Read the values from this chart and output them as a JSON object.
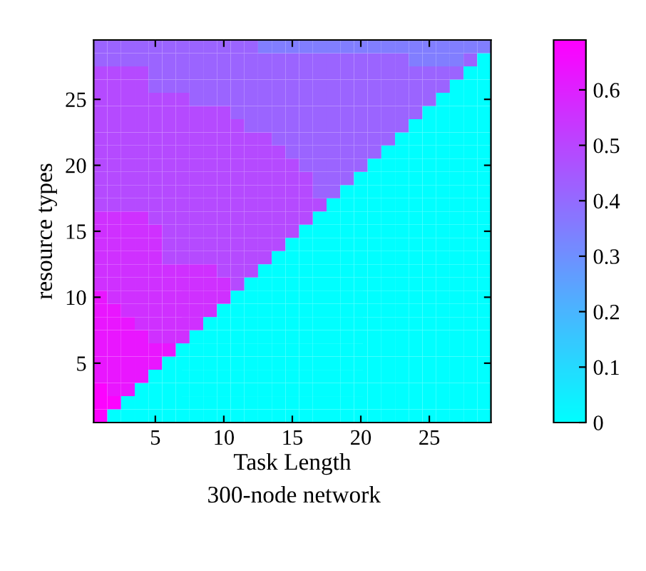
{
  "chart_data": {
    "type": "heatmap",
    "xlabel": "Task Length",
    "ylabel": "resource types",
    "annotations": [
      "300-node network"
    ],
    "categories": [
      null,
      null,
      null,
      null,
      "5",
      null,
      null,
      null,
      null,
      "10",
      null,
      null,
      null,
      null,
      "15",
      null,
      null,
      null,
      null,
      "20",
      null,
      null,
      null,
      null,
      "25",
      null,
      null,
      null,
      null
    ],
    "y_categories": [
      null,
      null,
      null,
      null,
      "25",
      null,
      null,
      null,
      null,
      "20",
      null,
      null,
      null,
      null,
      "15",
      null,
      null,
      null,
      null,
      "10",
      null,
      null,
      null,
      null,
      "5",
      null,
      null,
      null,
      null
    ],
    "clim": [
      0,
      0.69
    ],
    "cticks": [
      0,
      0.1,
      0.2,
      0.3,
      0.4,
      0.5,
      0.6
    ],
    "cells": [
      [
        0.42,
        0.42,
        0.42,
        0.42,
        0.42,
        0.42,
        0.42,
        0.42,
        0.42,
        0.42,
        0.42,
        0.42,
        0.35,
        0.35,
        0.35,
        0.35,
        0.35,
        0.35,
        0.35,
        0.35,
        0.35,
        0.35,
        0.35,
        0.35,
        0.35,
        0.35,
        0.35,
        0.35,
        0.35
      ],
      [
        0.42,
        0.42,
        0.42,
        0.42,
        0.42,
        0.42,
        0.42,
        0.42,
        0.42,
        0.42,
        0.42,
        0.42,
        0.42,
        0.42,
        0.42,
        0.42,
        0.42,
        0.42,
        0.42,
        0.42,
        0.42,
        0.42,
        0.42,
        0.35,
        0.35,
        0.35,
        0.35,
        0.42,
        0
      ],
      [
        0.49,
        0.49,
        0.49,
        0.49,
        0.42,
        0.42,
        0.42,
        0.42,
        0.42,
        0.42,
        0.42,
        0.42,
        0.42,
        0.42,
        0.42,
        0.42,
        0.42,
        0.42,
        0.42,
        0.42,
        0.42,
        0.42,
        0.42,
        0.42,
        0.42,
        0.42,
        0.42,
        0,
        0
      ],
      [
        0.49,
        0.49,
        0.49,
        0.49,
        0.42,
        0.42,
        0.42,
        0.42,
        0.42,
        0.42,
        0.42,
        0.42,
        0.42,
        0.42,
        0.42,
        0.42,
        0.42,
        0.42,
        0.42,
        0.42,
        0.42,
        0.42,
        0.42,
        0.42,
        0.42,
        0.42,
        0,
        0,
        0
      ],
      [
        0.49,
        0.49,
        0.49,
        0.49,
        0.49,
        0.49,
        0.49,
        0.42,
        0.42,
        0.42,
        0.42,
        0.42,
        0.42,
        0.42,
        0.42,
        0.42,
        0.42,
        0.42,
        0.42,
        0.42,
        0.42,
        0.42,
        0.42,
        0.42,
        0.42,
        0,
        0,
        0,
        0
      ],
      [
        0.49,
        0.49,
        0.49,
        0.49,
        0.49,
        0.49,
        0.49,
        0.49,
        0.49,
        0.49,
        0.42,
        0.42,
        0.42,
        0.42,
        0.42,
        0.42,
        0.42,
        0.42,
        0.42,
        0.42,
        0.42,
        0.42,
        0.42,
        0.42,
        0,
        0,
        0,
        0,
        0
      ],
      [
        0.49,
        0.49,
        0.49,
        0.49,
        0.49,
        0.49,
        0.49,
        0.49,
        0.49,
        0.49,
        0.49,
        0.42,
        0.42,
        0.42,
        0.42,
        0.42,
        0.42,
        0.42,
        0.42,
        0.42,
        0.42,
        0.42,
        0.42,
        0,
        0,
        0,
        0,
        0,
        0
      ],
      [
        0.49,
        0.49,
        0.49,
        0.49,
        0.49,
        0.49,
        0.49,
        0.49,
        0.49,
        0.49,
        0.49,
        0.49,
        0.49,
        0.42,
        0.42,
        0.42,
        0.42,
        0.42,
        0.42,
        0.42,
        0.42,
        0.42,
        0,
        0,
        0,
        0,
        0,
        0,
        0
      ],
      [
        0.49,
        0.49,
        0.49,
        0.49,
        0.49,
        0.49,
        0.49,
        0.49,
        0.49,
        0.49,
        0.49,
        0.49,
        0.49,
        0.49,
        0.42,
        0.42,
        0.42,
        0.42,
        0.42,
        0.42,
        0.42,
        0,
        0,
        0,
        0,
        0,
        0,
        0,
        0
      ],
      [
        0.49,
        0.49,
        0.49,
        0.49,
        0.49,
        0.49,
        0.49,
        0.49,
        0.49,
        0.49,
        0.49,
        0.49,
        0.49,
        0.49,
        0.49,
        0.42,
        0.42,
        0.42,
        0.42,
        0.42,
        0,
        0,
        0,
        0,
        0,
        0,
        0,
        0,
        0
      ],
      [
        0.49,
        0.49,
        0.49,
        0.49,
        0.49,
        0.49,
        0.49,
        0.49,
        0.49,
        0.49,
        0.49,
        0.49,
        0.49,
        0.49,
        0.49,
        0.49,
        0.42,
        0.42,
        0.42,
        0,
        0,
        0,
        0,
        0,
        0,
        0,
        0,
        0,
        0
      ],
      [
        0.49,
        0.49,
        0.49,
        0.49,
        0.49,
        0.49,
        0.49,
        0.49,
        0.49,
        0.49,
        0.49,
        0.49,
        0.49,
        0.49,
        0.49,
        0.49,
        0.42,
        0.42,
        0,
        0,
        0,
        0,
        0,
        0,
        0,
        0,
        0,
        0,
        0
      ],
      [
        0.49,
        0.49,
        0.49,
        0.49,
        0.49,
        0.49,
        0.49,
        0.49,
        0.49,
        0.49,
        0.49,
        0.49,
        0.49,
        0.49,
        0.49,
        0.49,
        0.49,
        0,
        0,
        0,
        0,
        0,
        0,
        0,
        0,
        0,
        0,
        0,
        0
      ],
      [
        0.56,
        0.56,
        0.56,
        0.56,
        0.49,
        0.49,
        0.49,
        0.49,
        0.49,
        0.49,
        0.49,
        0.49,
        0.49,
        0.49,
        0.49,
        0.49,
        0,
        0,
        0,
        0,
        0,
        0,
        0,
        0,
        0,
        0,
        0,
        0,
        0
      ],
      [
        0.56,
        0.56,
        0.56,
        0.56,
        0.56,
        0.49,
        0.49,
        0.49,
        0.49,
        0.49,
        0.49,
        0.49,
        0.49,
        0.49,
        0.49,
        0,
        0,
        0,
        0,
        0,
        0,
        0,
        0,
        0,
        0,
        0,
        0,
        0,
        0
      ],
      [
        0.56,
        0.56,
        0.56,
        0.56,
        0.56,
        0.49,
        0.49,
        0.49,
        0.49,
        0.49,
        0.49,
        0.49,
        0.49,
        0.49,
        0,
        0,
        0,
        0,
        0,
        0,
        0,
        0,
        0,
        0,
        0,
        0,
        0,
        0,
        0
      ],
      [
        0.56,
        0.56,
        0.56,
        0.56,
        0.56,
        0.49,
        0.49,
        0.49,
        0.49,
        0.49,
        0.49,
        0.49,
        0.49,
        0,
        0,
        0,
        0,
        0,
        0,
        0,
        0,
        0,
        0,
        0,
        0,
        0,
        0,
        0,
        0
      ],
      [
        0.56,
        0.56,
        0.56,
        0.56,
        0.56,
        0.56,
        0.56,
        0.56,
        0.56,
        0.49,
        0.49,
        0.49,
        0,
        0,
        0,
        0,
        0,
        0,
        0,
        0,
        0,
        0,
        0,
        0,
        0,
        0,
        0,
        0,
        0
      ],
      [
        0.56,
        0.56,
        0.56,
        0.56,
        0.56,
        0.56,
        0.56,
        0.56,
        0.56,
        0.56,
        0.49,
        0,
        0,
        0,
        0,
        0,
        0,
        0,
        0,
        0,
        0,
        0,
        0,
        0,
        0,
        0,
        0,
        0,
        0
      ],
      [
        0.63,
        0.56,
        0.56,
        0.56,
        0.56,
        0.56,
        0.56,
        0.56,
        0.56,
        0.56,
        0,
        0,
        0,
        0,
        0,
        0,
        0,
        0,
        0,
        0,
        0,
        0,
        0,
        0,
        0,
        0,
        0,
        0,
        0
      ],
      [
        0.63,
        0.63,
        0.56,
        0.56,
        0.56,
        0.56,
        0.56,
        0.56,
        0.56,
        0,
        0,
        0,
        0,
        0,
        0,
        0,
        0,
        0,
        0,
        0,
        0,
        0,
        0,
        0,
        0,
        0,
        0,
        0,
        0
      ],
      [
        0.63,
        0.63,
        0.63,
        0.56,
        0.56,
        0.56,
        0.56,
        0.56,
        0,
        0,
        0,
        0,
        0,
        0,
        0,
        0,
        0,
        0,
        0,
        0,
        0,
        0,
        0,
        0,
        0,
        0,
        0,
        0,
        0
      ],
      [
        0.63,
        0.63,
        0.63,
        0.63,
        0.56,
        0.56,
        0.56,
        0,
        0,
        0,
        0,
        0,
        0,
        0,
        0,
        0,
        0,
        0,
        0,
        0,
        0,
        0,
        0,
        0,
        0,
        0,
        0,
        0,
        0
      ],
      [
        0.63,
        0.63,
        0.63,
        0.63,
        0.63,
        0.63,
        0,
        0,
        0,
        0,
        0,
        0,
        0,
        0,
        0,
        0,
        0,
        0,
        0,
        0,
        0,
        0,
        0,
        0,
        0,
        0,
        0,
        0,
        0
      ],
      [
        0.63,
        0.63,
        0.63,
        0.63,
        0.63,
        0,
        0,
        0,
        0,
        0,
        0,
        0,
        0,
        0,
        0,
        0,
        0,
        0,
        0,
        0,
        0,
        0,
        0,
        0,
        0,
        0,
        0,
        0,
        0
      ],
      [
        0.63,
        0.63,
        0.63,
        0.63,
        0,
        0,
        0,
        0,
        0,
        0,
        0,
        0,
        0,
        0,
        0,
        0,
        0,
        0,
        0,
        0,
        0,
        0,
        0,
        0,
        0,
        0,
        0,
        0,
        0
      ],
      [
        0.68,
        0.63,
        0.63,
        0,
        0,
        0,
        0,
        0,
        0,
        0,
        0,
        0,
        0,
        0,
        0,
        0,
        0,
        0,
        0,
        0,
        0,
        0,
        0,
        0,
        0,
        0,
        0,
        0,
        0
      ],
      [
        0.68,
        0.68,
        0,
        0,
        0,
        0,
        0,
        0,
        0,
        0,
        0,
        0,
        0,
        0,
        0,
        0,
        0,
        0,
        0,
        0,
        0,
        0,
        0,
        0,
        0,
        0,
        0,
        0,
        0
      ],
      [
        0.68,
        0,
        0,
        0,
        0,
        0,
        0,
        0,
        0,
        0,
        0,
        0,
        0,
        0,
        0,
        0,
        0,
        0,
        0,
        0,
        0,
        0,
        0,
        0,
        0,
        0,
        0,
        0,
        0
      ]
    ]
  }
}
